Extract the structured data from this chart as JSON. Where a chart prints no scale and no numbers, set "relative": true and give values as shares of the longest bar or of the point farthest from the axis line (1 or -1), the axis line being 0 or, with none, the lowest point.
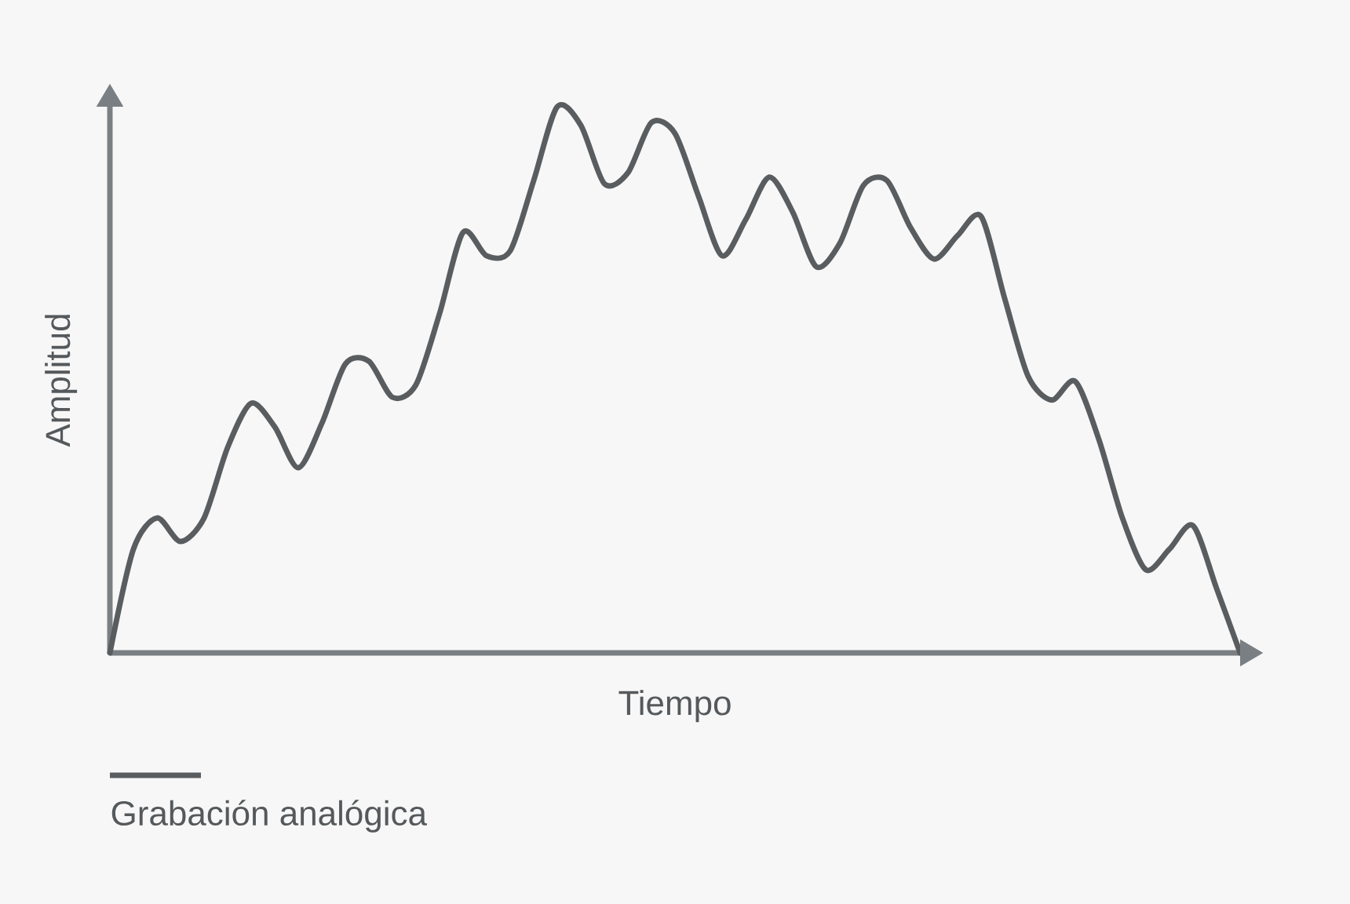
{
  "chart_data": {
    "type": "line",
    "relative": true,
    "xlabel": "Tiempo",
    "ylabel": "Amplitud",
    "legend": "bottom left",
    "marker": "none",
    "line_style": "solid",
    "categories": [
      null,
      null,
      null,
      null,
      null,
      null,
      null,
      null,
      null,
      null,
      null,
      null,
      null,
      null,
      null,
      null,
      null,
      null,
      null,
      null,
      null,
      null,
      null,
      null,
      null,
      null,
      null,
      null,
      null,
      null,
      null,
      null,
      null,
      null,
      null,
      null,
      null,
      null,
      null,
      null,
      null,
      null,
      null,
      null,
      null,
      null,
      null,
      null,
      null
    ],
    "series": [
      {
        "name": "Grabación analógica",
        "color": "#5a5d60",
        "values": [
          0,
          0.19,
          0.247,
          0.204,
          0.247,
          0.376,
          0.457,
          0.414,
          0.339,
          0.42,
          0.529,
          0.534,
          0.468,
          0.491,
          0.621,
          0.77,
          0.727,
          0.736,
          0.865,
          1,
          0.966,
          0.859,
          0.879,
          0.971,
          0.951,
          0.836,
          0.727,
          0.793,
          0.871,
          0.807,
          0.707,
          0.75,
          0.856,
          0.865,
          0.779,
          0.721,
          0.764,
          0.799,
          0.649,
          0.506,
          0.463,
          0.497,
          0.391,
          0.247,
          0.152,
          0.19,
          0.233,
          0.118,
          0
        ]
      }
    ]
  }
}
